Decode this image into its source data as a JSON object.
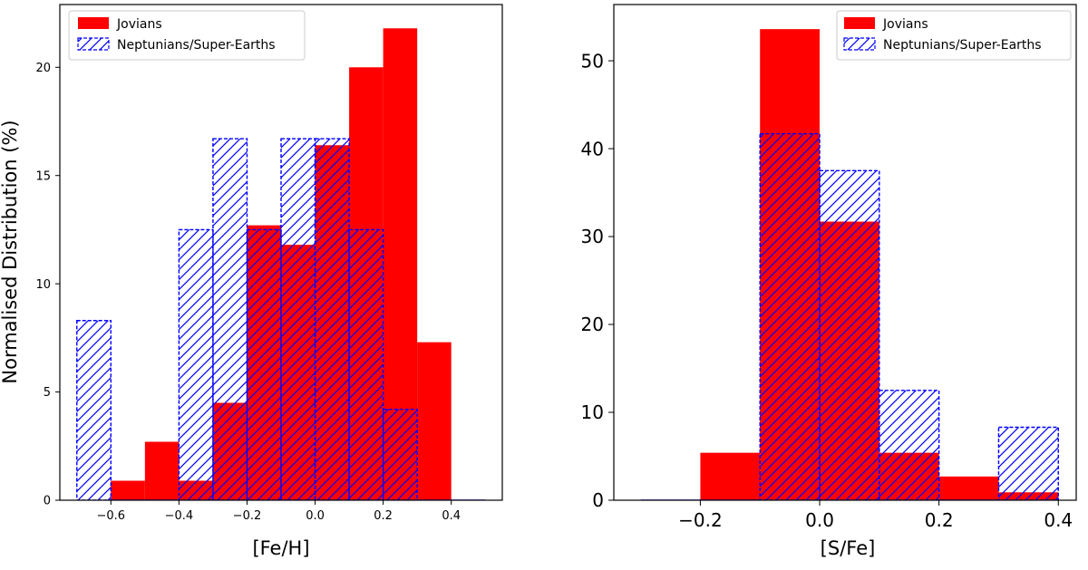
{
  "chart_data": [
    {
      "type": "bar",
      "histogram": true,
      "xlabel": "[Fe/H]",
      "ylabel": "Normalised Distribution (%)",
      "xlim": [
        -0.75,
        0.55
      ],
      "ylim": [
        0,
        22.9
      ],
      "xticks": [
        -0.6,
        -0.4,
        -0.2,
        0.0,
        0.2,
        0.4
      ],
      "xtick_labels": [
        "−0.6",
        "−0.4",
        "−0.2",
        "0.0",
        "0.2",
        "0.4"
      ],
      "yticks": [
        0,
        5,
        10,
        15,
        20
      ],
      "ytick_labels": [
        "0",
        "5",
        "10",
        "15",
        "20"
      ],
      "grid": false,
      "legend": "top-left",
      "series": [
        {
          "name": "Jovians",
          "style": "filled",
          "color": "#ff0000",
          "bins": [
            {
              "x0": -0.6,
              "x1": -0.5,
              "value": 0.9
            },
            {
              "x0": -0.5,
              "x1": -0.4,
              "value": 2.7
            },
            {
              "x0": -0.4,
              "x1": -0.3,
              "value": 0.9
            },
            {
              "x0": -0.3,
              "x1": -0.2,
              "value": 4.5
            },
            {
              "x0": -0.2,
              "x1": -0.1,
              "value": 12.7
            },
            {
              "x0": -0.1,
              "x1": 0.0,
              "value": 11.8
            },
            {
              "x0": 0.0,
              "x1": 0.1,
              "value": 16.4
            },
            {
              "x0": 0.1,
              "x1": 0.2,
              "value": 20.0
            },
            {
              "x0": 0.2,
              "x1": 0.3,
              "value": 21.8
            },
            {
              "x0": 0.3,
              "x1": 0.4,
              "value": 7.3
            }
          ]
        },
        {
          "name": "Neptunians/Super-Earths",
          "style": "hatched-dashed",
          "color": "#0000ff",
          "bins": [
            {
              "x0": -0.7,
              "x1": -0.6,
              "value": 8.3
            },
            {
              "x0": -0.6,
              "x1": -0.5,
              "value": 0
            },
            {
              "x0": -0.5,
              "x1": -0.4,
              "value": 0
            },
            {
              "x0": -0.4,
              "x1": -0.3,
              "value": 12.5
            },
            {
              "x0": -0.3,
              "x1": -0.2,
              "value": 16.7
            },
            {
              "x0": -0.2,
              "x1": -0.1,
              "value": 12.5
            },
            {
              "x0": -0.1,
              "x1": 0.0,
              "value": 16.7
            },
            {
              "x0": 0.0,
              "x1": 0.1,
              "value": 16.7
            },
            {
              "x0": 0.1,
              "x1": 0.2,
              "value": 12.5
            },
            {
              "x0": 0.2,
              "x1": 0.3,
              "value": 4.2
            },
            {
              "x0": 0.3,
              "x1": 0.4,
              "value": 0
            },
            {
              "x0": 0.4,
              "x1": 0.5,
              "value": 0
            }
          ]
        }
      ]
    },
    {
      "type": "bar",
      "histogram": true,
      "xlabel": "[S/Fe]",
      "ylabel": "",
      "xlim": [
        -0.345,
        0.43
      ],
      "ylim": [
        0,
        56.4
      ],
      "xticks": [
        -0.2,
        0.0,
        0.2,
        0.4
      ],
      "xtick_labels": [
        "−0.2",
        "0.0",
        "0.2",
        "0.4"
      ],
      "yticks": [
        0,
        10,
        20,
        30,
        40,
        50
      ],
      "ytick_labels": [
        "0",
        "10",
        "20",
        "30",
        "40",
        "50"
      ],
      "grid": false,
      "legend": "top-right",
      "series": [
        {
          "name": "Jovians",
          "style": "filled",
          "color": "#ff0000",
          "bins": [
            {
              "x0": -0.2,
              "x1": -0.1,
              "value": 5.4
            },
            {
              "x0": -0.1,
              "x1": 0.0,
              "value": 53.6
            },
            {
              "x0": 0.0,
              "x1": 0.1,
              "value": 31.7
            },
            {
              "x0": 0.1,
              "x1": 0.2,
              "value": 5.4
            },
            {
              "x0": 0.2,
              "x1": 0.3,
              "value": 2.7
            },
            {
              "x0": 0.3,
              "x1": 0.4,
              "value": 0.9
            }
          ]
        },
        {
          "name": "Neptunians/Super-Earths",
          "style": "hatched-dashed",
          "color": "#0000ff",
          "bins": [
            {
              "x0": -0.3,
              "x1": -0.2,
              "value": 0
            },
            {
              "x0": -0.2,
              "x1": -0.1,
              "value": 0
            },
            {
              "x0": -0.1,
              "x1": 0.0,
              "value": 41.7
            },
            {
              "x0": 0.0,
              "x1": 0.1,
              "value": 37.5
            },
            {
              "x0": 0.1,
              "x1": 0.2,
              "value": 12.5
            },
            {
              "x0": 0.2,
              "x1": 0.3,
              "value": 0
            },
            {
              "x0": 0.3,
              "x1": 0.4,
              "value": 8.3
            }
          ]
        }
      ]
    }
  ]
}
